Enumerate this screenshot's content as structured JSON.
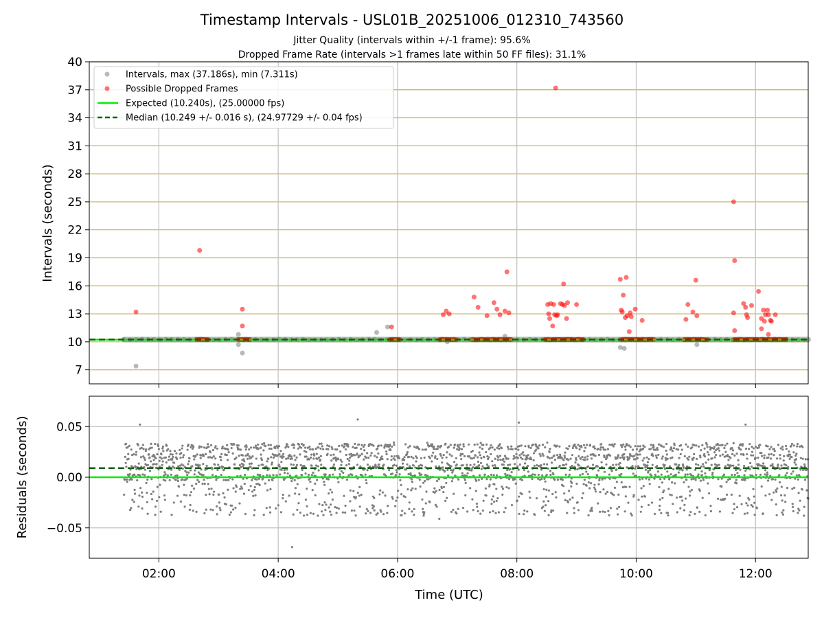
{
  "title": "Timestamp Intervals - USL01B_20251006_012310_743560",
  "subtitle_1": "Jitter Quality (intervals within +/-1 frame): 95.6%",
  "subtitle_2": "Dropped Frame Rate (intervals >1 frames late within 50 FF files): 31.1%",
  "colors": {
    "intervals": "#7f7f7f",
    "dropped": "#ff0000",
    "expected": "#00ee00",
    "median": "#006400",
    "hgrid": "#c8ad5a",
    "vgrid": "#bfbfbf"
  },
  "chart_data": [
    {
      "type": "scatter",
      "panel": "intervals",
      "ylabel": "Intervals (seconds)",
      "xlabel": "",
      "xlim": [
        "00:50",
        "12:53"
      ],
      "ylim": [
        5.5,
        40
      ],
      "yticks": [
        "7",
        "10",
        "13",
        "16",
        "19",
        "22",
        "25",
        "28",
        "31",
        "34",
        "37",
        "40"
      ],
      "xticks": [
        "02:00",
        "04:00",
        "06:00",
        "08:00",
        "10:00",
        "12:00"
      ],
      "grid": "horizontal lines at each y tick, vertical lines at each x tick",
      "legend_position": "top-left",
      "legend": {
        "intervals": "Intervals, max (37.186s), min (7.311s)",
        "dropped": "Possible Dropped Frames",
        "expected": "Expected (10.240s), (25.00000 fps)",
        "median": "Median (10.249 +/- 0.016 s), (24.97729 +/- 0.04 fps)"
      },
      "expected_value": 10.24,
      "median_value": 10.249,
      "baseline_start": "01:25",
      "dense_interval_band": [
        "01:25",
        "12:53"
      ],
      "dropped_runs": [
        [
          "02:38",
          "02:50"
        ],
        [
          "03:20",
          "03:32"
        ],
        [
          "05:52",
          "06:03"
        ],
        [
          "06:42",
          "07:00"
        ],
        [
          "07:15",
          "07:55"
        ],
        [
          "08:28",
          "09:08"
        ],
        [
          "09:45",
          "10:18"
        ],
        [
          "10:48",
          "11:12"
        ],
        [
          "11:38",
          "12:32"
        ]
      ],
      "series": [
        {
          "name": "Intervals, max (37.186s), min (7.311s)",
          "points": [
            {
              "x": "01:37",
              "y": 7.4
            },
            {
              "x": "03:20",
              "y": 10.8
            },
            {
              "x": "03:20",
              "y": 9.7
            },
            {
              "x": "03:24",
              "y": 8.8
            },
            {
              "x": "05:39",
              "y": 11.0
            },
            {
              "x": "05:50",
              "y": 11.6
            },
            {
              "x": "06:50",
              "y": 10.0
            },
            {
              "x": "07:48",
              "y": 10.6
            },
            {
              "x": "09:44",
              "y": 9.4
            },
            {
              "x": "09:48",
              "y": 9.3
            },
            {
              "x": "11:01",
              "y": 9.7
            }
          ]
        },
        {
          "name": "Possible Dropped Frames",
          "points": [
            {
              "x": "01:37",
              "y": 13.2
            },
            {
              "x": "02:41",
              "y": 19.8
            },
            {
              "x": "03:24",
              "y": 13.5
            },
            {
              "x": "03:24",
              "y": 11.7
            },
            {
              "x": "05:54",
              "y": 11.6
            },
            {
              "x": "06:46",
              "y": 12.9
            },
            {
              "x": "06:49",
              "y": 13.3
            },
            {
              "x": "06:52",
              "y": 13.0
            },
            {
              "x": "07:17",
              "y": 14.8
            },
            {
              "x": "07:21",
              "y": 13.7
            },
            {
              "x": "07:30",
              "y": 12.8
            },
            {
              "x": "07:37",
              "y": 14.2
            },
            {
              "x": "07:40",
              "y": 13.5
            },
            {
              "x": "07:43",
              "y": 12.9
            },
            {
              "x": "07:48",
              "y": 13.3
            },
            {
              "x": "07:50",
              "y": 17.5
            },
            {
              "x": "07:52",
              "y": 13.1
            },
            {
              "x": "08:31",
              "y": 14.0
            },
            {
              "x": "08:32",
              "y": 13.0
            },
            {
              "x": "08:33",
              "y": 12.5
            },
            {
              "x": "08:34",
              "y": 14.1
            },
            {
              "x": "08:36",
              "y": 11.7
            },
            {
              "x": "08:37",
              "y": 14.0
            },
            {
              "x": "08:38",
              "y": 12.9
            },
            {
              "x": "08:39",
              "y": 37.2
            },
            {
              "x": "08:40",
              "y": 12.8
            },
            {
              "x": "08:41",
              "y": 12.9
            },
            {
              "x": "08:44",
              "y": 14.1
            },
            {
              "x": "08:46",
              "y": 14.0
            },
            {
              "x": "08:47",
              "y": 16.2
            },
            {
              "x": "08:48",
              "y": 13.9
            },
            {
              "x": "08:50",
              "y": 12.5
            },
            {
              "x": "08:51",
              "y": 14.2
            },
            {
              "x": "09:00",
              "y": 14.0
            },
            {
              "x": "09:44",
              "y": 16.7
            },
            {
              "x": "09:45",
              "y": 13.4
            },
            {
              "x": "09:46",
              "y": 13.2
            },
            {
              "x": "09:47",
              "y": 15.0
            },
            {
              "x": "09:49",
              "y": 12.6
            },
            {
              "x": "09:50",
              "y": 16.9
            },
            {
              "x": "09:51",
              "y": 12.8
            },
            {
              "x": "09:53",
              "y": 11.1
            },
            {
              "x": "09:54",
              "y": 13.1
            },
            {
              "x": "09:55",
              "y": 12.7
            },
            {
              "x": "09:59",
              "y": 13.5
            },
            {
              "x": "10:06",
              "y": 12.3
            },
            {
              "x": "10:50",
              "y": 12.4
            },
            {
              "x": "10:52",
              "y": 14.0
            },
            {
              "x": "10:57",
              "y": 13.2
            },
            {
              "x": "11:00",
              "y": 16.6
            },
            {
              "x": "11:01",
              "y": 12.8
            },
            {
              "x": "11:38",
              "y": 25.0
            },
            {
              "x": "11:38",
              "y": 13.1
            },
            {
              "x": "11:39",
              "y": 18.7
            },
            {
              "x": "11:39",
              "y": 11.2
            },
            {
              "x": "11:48",
              "y": 14.1
            },
            {
              "x": "11:50",
              "y": 13.7
            },
            {
              "x": "11:51",
              "y": 12.9
            },
            {
              "x": "11:52",
              "y": 12.6
            },
            {
              "x": "11:56",
              "y": 13.9
            },
            {
              "x": "12:03",
              "y": 15.4
            },
            {
              "x": "12:06",
              "y": 11.4
            },
            {
              "x": "12:06",
              "y": 12.5
            },
            {
              "x": "12:08",
              "y": 13.4
            },
            {
              "x": "12:09",
              "y": 12.2
            },
            {
              "x": "12:10",
              "y": 12.9
            },
            {
              "x": "12:12",
              "y": 13.4
            },
            {
              "x": "12:13",
              "y": 12.9
            },
            {
              "x": "12:13",
              "y": 10.8
            },
            {
              "x": "12:15",
              "y": 12.3
            },
            {
              "x": "12:16",
              "y": 12.2
            },
            {
              "x": "12:20",
              "y": 12.9
            }
          ]
        }
      ]
    },
    {
      "type": "scatter",
      "panel": "residuals",
      "ylabel": "Residuals (seconds)",
      "xlabel": "Time (UTC)",
      "xlim": [
        "00:50",
        "12:53"
      ],
      "ylim": [
        -0.08,
        0.08
      ],
      "yticks": [
        "0.05",
        "0.00",
        "−0.05"
      ],
      "xticks": [
        "02:00",
        "04:00",
        "06:00",
        "08:00",
        "10:00",
        "12:00"
      ],
      "grid": "horizontal and vertical lines at each tick",
      "expected_residual": 0.0,
      "median_residual": 0.009,
      "residual_range": [
        -0.04,
        0.045
      ],
      "band_levels": [
        0.0,
        0.01,
        0.02,
        0.03
      ],
      "outliers": [
        {
          "x": "04:14",
          "y": -0.069
        },
        {
          "x": "05:20",
          "y": 0.057
        },
        {
          "x": "06:42",
          "y": -0.041
        },
        {
          "x": "08:02",
          "y": 0.054
        },
        {
          "x": "01:41",
          "y": 0.052
        },
        {
          "x": "11:50",
          "y": 0.052
        }
      ]
    }
  ]
}
